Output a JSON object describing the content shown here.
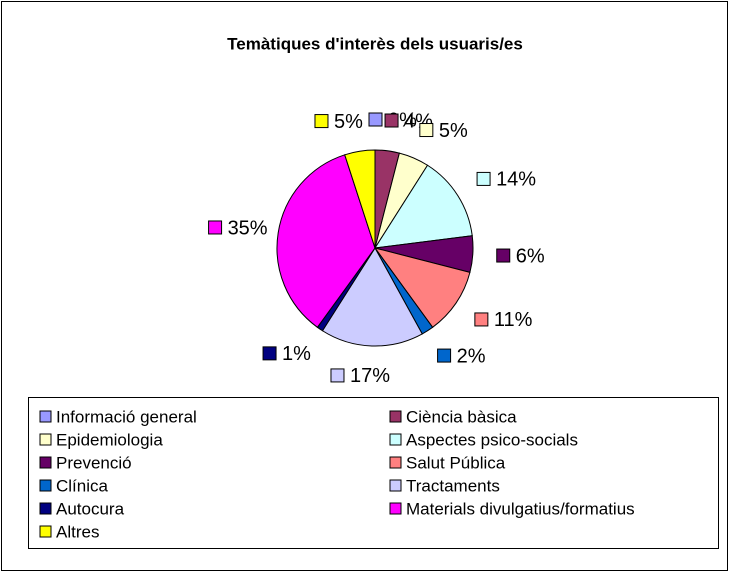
{
  "chart_data": {
    "type": "pie",
    "title": "Temàtiques d'interès dels usuaris/es",
    "categories": [
      "Informació general",
      "Ciència bàsica",
      "Epidemiologia",
      "Aspectes psico-socials",
      "Prevenció",
      "Salut Pública",
      "Clínica",
      "Tractaments",
      "Autocura",
      "Materials divulgatius/formatius",
      "Altres"
    ],
    "values": [
      0,
      4,
      5,
      14,
      6,
      11,
      2,
      17,
      1,
      35,
      5
    ],
    "value_labels": [
      "0%",
      "4%",
      "5%",
      "14%",
      "6%",
      "11%",
      "2%",
      "17%",
      "1%",
      "35%",
      "5%"
    ],
    "colors": [
      "#9999ff",
      "#993366",
      "#ffffcc",
      "#ccffff",
      "#660066",
      "#ff8080",
      "#0066cc",
      "#ccccff",
      "#000080",
      "#ff00ff",
      "#ffff00"
    ],
    "legend": "bottom"
  }
}
